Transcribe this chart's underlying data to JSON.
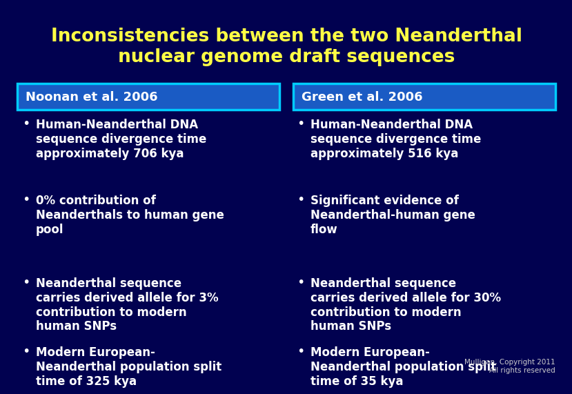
{
  "title_line1": "Inconsistencies between the two Neanderthal",
  "title_line2": "nuclear genome draft sequences",
  "title_color": "#FFFF44",
  "background_color": "#010150",
  "box_bg_color": "#1a5bc4",
  "box_border_color": "#00CCFF",
  "text_color": "#FFFFFF",
  "header_text_color": "#FFFFFF",
  "left_header": "Noonan et al. 2006",
  "right_header": "Green et al. 2006",
  "left_bullets": [
    "Human-Neanderthal DNA\nsequence divergence time\napproximately 706 kya",
    "0% contribution of\nNeanderthals to human gene\npool",
    "Neanderthal sequence\ncarries derived allele for 3%\ncontribution to modern\nhuman SNPs",
    "Modern European-\nNeanderthal population split\ntime of 325 kya"
  ],
  "right_bullets": [
    "Human-Neanderthal DNA\nsequence divergence time\napproximately 516 kya",
    "Significant evidence of\nNeanderthal-human gene\nflow",
    "Neanderthal sequence\ncarries derived allele for 30%\ncontribution to modern\nhuman SNPs",
    "Modern European-\nNeanderthal population split\ntime of 35 kya"
  ],
  "footnote": "Mulligan, Copyright 2011\nAll rights reserved",
  "footnote_color": "#CCCCCC"
}
